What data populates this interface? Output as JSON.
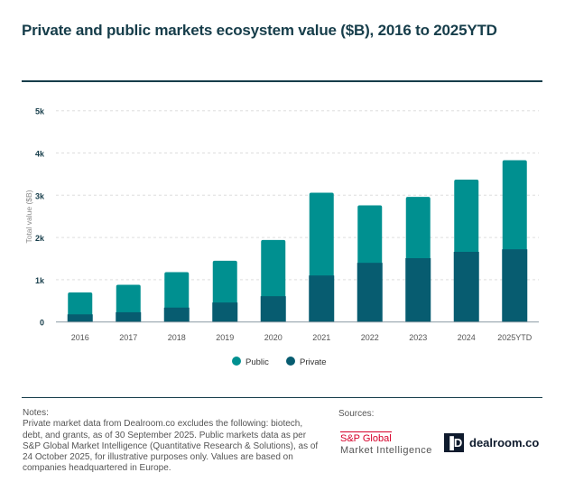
{
  "title": "Private and public markets ecosystem value ($B), 2016 to 2025YTD",
  "colors": {
    "public": "#009090",
    "private": "#075c70",
    "grid": "#dddddd",
    "axis": "#8a9aa3"
  },
  "chart_data": {
    "type": "bar",
    "stacked": true,
    "title": "Private and public markets ecosystem value ($B), 2016 to 2025YTD",
    "xlabel": "",
    "ylabel": "Total value ($B)",
    "ylim": [
      0,
      5000
    ],
    "yticks": [
      0,
      1000,
      2000,
      3000,
      4000,
      5000
    ],
    "ytick_labels": [
      "0",
      "1k",
      "2k",
      "3k",
      "4k",
      "5k"
    ],
    "grid": true,
    "legend_position": "bottom-center",
    "categories": [
      "2016",
      "2017",
      "2018",
      "2019",
      "2020",
      "2021",
      "2022",
      "2023",
      "2024",
      "2025YTD"
    ],
    "series": [
      {
        "name": "Private",
        "values": [
          180,
          230,
          340,
          460,
          610,
          1100,
          1400,
          1510,
          1660,
          1720
        ]
      },
      {
        "name": "Public",
        "values": [
          520,
          650,
          840,
          990,
          1330,
          1960,
          1360,
          1450,
          1710,
          2110
        ]
      }
    ],
    "legend": [
      "Public",
      "Private"
    ]
  },
  "notes": {
    "heading": "Notes:",
    "text": "Private market data from Dealroom.co excludes the following: biotech, debt, and grants, as of 30 September 2025. Public markets data as per S&P Global Market Intelligence (Quantitative Research & Solutions), as of 24 October 2025, for illustrative purposes only. Values are based on companies headquartered in Europe."
  },
  "sources": {
    "heading": "Sources:",
    "sp_line1": "S&P Global",
    "sp_line2": "Market Intelligence",
    "dealroom_mark": "▐D",
    "dealroom": "dealroom.co"
  }
}
